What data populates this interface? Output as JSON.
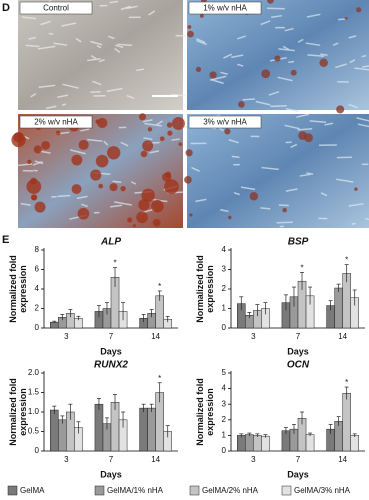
{
  "panel_labels": [
    "D",
    "E"
  ],
  "images": [
    {
      "label": "Control"
    },
    {
      "label": "1% w/v nHA"
    },
    {
      "label": "2% w/v nHA"
    },
    {
      "label": "3% w/v nHA"
    }
  ],
  "chart_data": [
    {
      "type": "bar",
      "title": "ALP",
      "xlabel": "Days",
      "ylabel": [
        "Normalized fold",
        "expression"
      ],
      "categories": [
        "3",
        "7",
        "14"
      ],
      "ylim": [
        0,
        8
      ],
      "yticks": [
        0,
        2,
        4,
        6,
        8
      ],
      "series": [
        {
          "name": "GelMA",
          "color": "#7a7a7a",
          "values": [
            0.6,
            1.7,
            1.0
          ],
          "errors": [
            0.1,
            0.6,
            0.4
          ],
          "markers": [
            null,
            null,
            null
          ]
        },
        {
          "name": "GelMA/1% nHA",
          "color": "#9a9a9a",
          "values": [
            1.1,
            2.0,
            1.5
          ],
          "errors": [
            0.3,
            0.6,
            0.4
          ],
          "markers": [
            null,
            null,
            null
          ]
        },
        {
          "name": "GelMA/2% nHA",
          "color": "#c4c4c4",
          "values": [
            1.5,
            5.2,
            3.3
          ],
          "errors": [
            0.4,
            1.0,
            0.5
          ],
          "markers": [
            null,
            "*",
            "*"
          ]
        },
        {
          "name": "GelMA/3% nHA",
          "color": "#e2e2e2",
          "values": [
            1.0,
            1.7,
            0.9
          ],
          "errors": [
            0.2,
            0.9,
            0.3
          ],
          "markers": [
            null,
            null,
            null
          ]
        }
      ]
    },
    {
      "type": "bar",
      "title": "BSP",
      "xlabel": "Days",
      "ylabel": [
        "Normalized fold",
        "expression"
      ],
      "categories": [
        "3",
        "7",
        "14"
      ],
      "ylim": [
        0,
        4
      ],
      "yticks": [
        0,
        1,
        2,
        3,
        4
      ],
      "series": [
        {
          "color": "#7a7a7a",
          "values": [
            1.25,
            1.3,
            1.15
          ],
          "errors": [
            0.35,
            0.4,
            0.25
          ],
          "markers": [
            null,
            null,
            null
          ]
        },
        {
          "color": "#9a9a9a",
          "values": [
            0.65,
            1.6,
            2.05
          ],
          "errors": [
            0.15,
            0.5,
            0.2
          ],
          "markers": [
            null,
            null,
            null
          ]
        },
        {
          "color": "#c4c4c4",
          "values": [
            0.9,
            2.4,
            2.8
          ],
          "errors": [
            0.3,
            0.45,
            0.45
          ],
          "markers": [
            null,
            "*",
            "*"
          ]
        },
        {
          "color": "#e2e2e2",
          "values": [
            1.0,
            1.65,
            1.55
          ],
          "errors": [
            0.3,
            0.45,
            0.4
          ],
          "markers": [
            null,
            null,
            null
          ]
        }
      ]
    },
    {
      "type": "bar",
      "title": "RUNX2",
      "xlabel": "Days",
      "ylabel": [
        "Normalized fold",
        "expression"
      ],
      "categories": [
        "3",
        "7",
        "14"
      ],
      "ylim": [
        0,
        2
      ],
      "yticks": [
        0,
        0.5,
        {
          "value": 1,
          "label": "1.0"
        },
        1.5,
        {
          "value": 2,
          "label": "2.0"
        }
      ],
      "series": [
        {
          "color": "#7a7a7a",
          "values": [
            1.05,
            1.2,
            1.1
          ],
          "errors": [
            0.1,
            0.15,
            0.1
          ],
          "markers": [
            null,
            null,
            null
          ]
        },
        {
          "color": "#9a9a9a",
          "values": [
            0.8,
            0.7,
            1.1
          ],
          "errors": [
            0.1,
            0.15,
            0.1
          ],
          "markers": [
            null,
            null,
            null
          ]
        },
        {
          "color": "#c4c4c4",
          "values": [
            1.0,
            1.25,
            1.5
          ],
          "errors": [
            0.2,
            0.2,
            0.25
          ],
          "markers": [
            null,
            null,
            "*"
          ]
        },
        {
          "color": "#e2e2e2",
          "values": [
            0.6,
            0.8,
            0.5
          ],
          "errors": [
            0.15,
            0.2,
            0.15
          ],
          "markers": [
            null,
            null,
            null
          ]
        }
      ]
    },
    {
      "type": "bar",
      "title": "OCN",
      "xlabel": "Days",
      "ylabel": [
        "Normalized fold",
        "expression"
      ],
      "categories": [
        "3",
        "7",
        "14"
      ],
      "ylim": [
        0,
        5
      ],
      "yticks": [
        0,
        1,
        2,
        3,
        4,
        5
      ],
      "series": [
        {
          "color": "#7a7a7a",
          "values": [
            1.0,
            1.3,
            1.4
          ],
          "errors": [
            0.1,
            0.2,
            0.3
          ],
          "markers": [
            null,
            null,
            null
          ]
        },
        {
          "color": "#9a9a9a",
          "values": [
            1.05,
            1.4,
            1.9
          ],
          "errors": [
            0.1,
            0.3,
            0.3
          ],
          "markers": [
            null,
            null,
            null
          ]
        },
        {
          "color": "#c4c4c4",
          "values": [
            1.0,
            2.1,
            3.7
          ],
          "errors": [
            0.1,
            0.4,
            0.4
          ],
          "markers": [
            null,
            null,
            "*"
          ]
        },
        {
          "color": "#e2e2e2",
          "values": [
            0.95,
            1.05,
            1.0
          ],
          "errors": [
            0.1,
            0.1,
            0.1
          ],
          "markers": [
            null,
            null,
            null
          ]
        }
      ]
    }
  ]
}
